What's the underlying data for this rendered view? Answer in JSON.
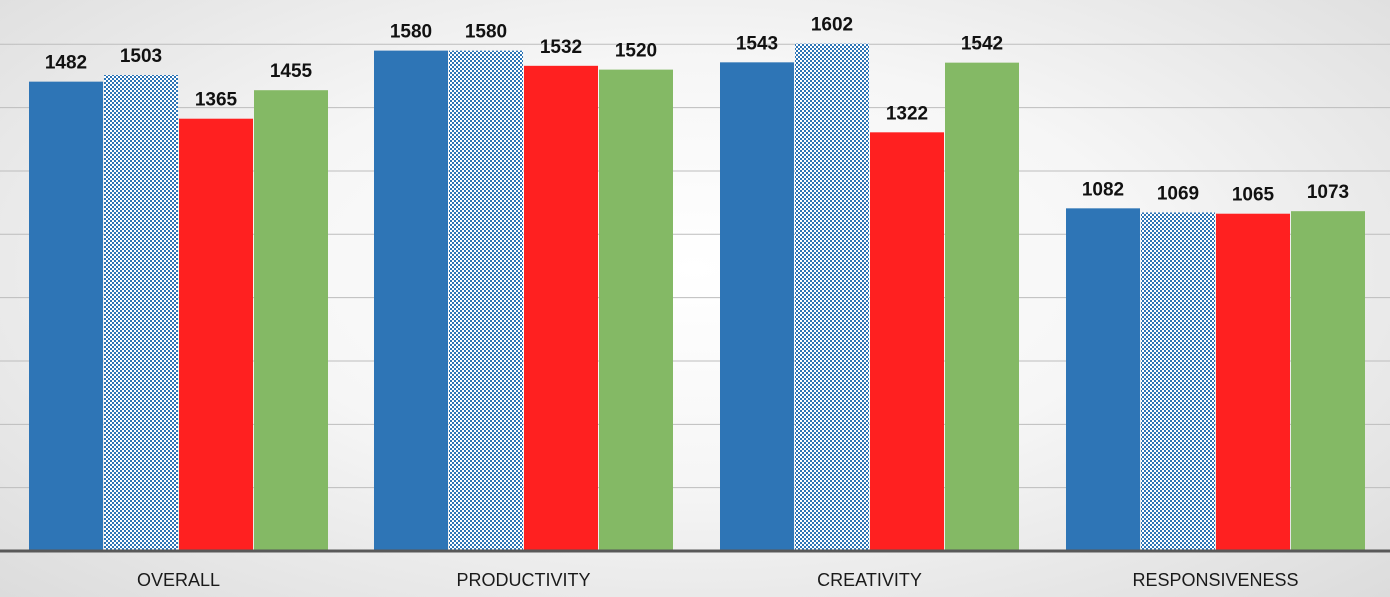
{
  "chart_data": {
    "type": "bar",
    "categories": [
      "OVERALL",
      "PRODUCTIVITY",
      "CREATIVITY",
      "RESPONSIVENESS"
    ],
    "series": [
      {
        "values": [
          1482,
          1580,
          1543,
          1082
        ],
        "color": "#2e75b6",
        "pattern": "solid"
      },
      {
        "values": [
          1503,
          1580,
          1602,
          1069
        ],
        "color": "#2e75b6",
        "pattern": "checker"
      },
      {
        "values": [
          1365,
          1532,
          1322,
          1065
        ],
        "color": "#ff2020",
        "pattern": "solid"
      },
      {
        "values": [
          1455,
          1520,
          1542,
          1073
        ],
        "color": "#84b965",
        "pattern": "solid"
      }
    ],
    "title": "",
    "xlabel": "",
    "ylabel": "",
    "ylim": [
      0,
      1600
    ],
    "y_gridline_step": 200,
    "grid": true,
    "legend": "none",
    "value_labels": true
  }
}
